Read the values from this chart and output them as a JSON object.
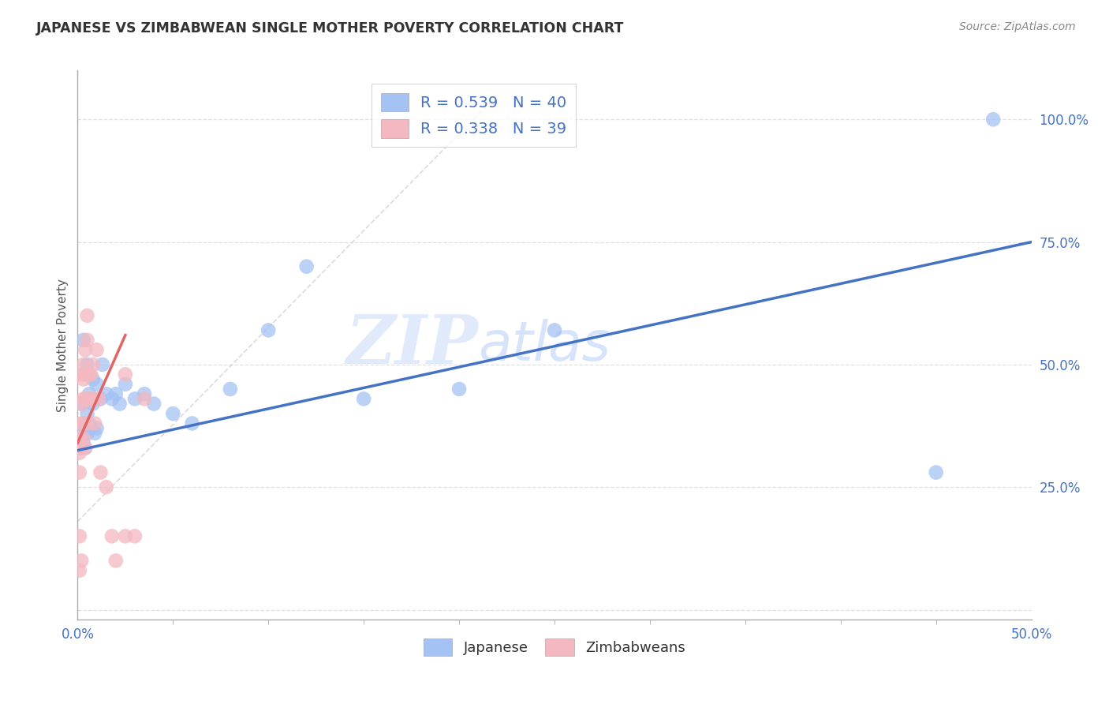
{
  "title": "JAPANESE VS ZIMBABWEAN SINGLE MOTHER POVERTY CORRELATION CHART",
  "source": "Source: ZipAtlas.com",
  "ylabel": "Single Mother Poverty",
  "xlim": [
    0.0,
    0.5
  ],
  "ylim": [
    -0.02,
    1.1
  ],
  "background_color": "#ffffff",
  "grid_color": "#e0e0e0",
  "watermark_zip": "ZIP",
  "watermark_atlas": "atlas",
  "legend_R1": "R = 0.539",
  "legend_N1": "N = 40",
  "legend_R2": "R = 0.338",
  "legend_N2": "N = 39",
  "blue_color": "#a4c2f4",
  "pink_color": "#f4b8c1",
  "line_blue": "#4472c4",
  "line_pink": "#e06666",
  "diag_color": "#cccccc",
  "japanese_x": [
    0.001,
    0.002,
    0.002,
    0.003,
    0.003,
    0.003,
    0.004,
    0.004,
    0.005,
    0.005,
    0.005,
    0.006,
    0.006,
    0.007,
    0.007,
    0.008,
    0.008,
    0.009,
    0.01,
    0.01,
    0.012,
    0.013,
    0.015,
    0.018,
    0.02,
    0.022,
    0.025,
    0.03,
    0.035,
    0.04,
    0.05,
    0.06,
    0.08,
    0.1,
    0.12,
    0.15,
    0.2,
    0.25,
    0.45,
    0.48
  ],
  "japanese_y": [
    0.33,
    0.36,
    0.42,
    0.34,
    0.38,
    0.55,
    0.37,
    0.33,
    0.4,
    0.36,
    0.5,
    0.44,
    0.38,
    0.43,
    0.37,
    0.47,
    0.42,
    0.36,
    0.37,
    0.46,
    0.43,
    0.5,
    0.44,
    0.43,
    0.44,
    0.42,
    0.46,
    0.43,
    0.44,
    0.42,
    0.4,
    0.38,
    0.45,
    0.57,
    0.7,
    0.43,
    0.45,
    0.57,
    0.28,
    1.0
  ],
  "zimbabwe_x": [
    0.001,
    0.001,
    0.001,
    0.001,
    0.001,
    0.002,
    0.002,
    0.002,
    0.002,
    0.002,
    0.003,
    0.003,
    0.003,
    0.003,
    0.003,
    0.004,
    0.004,
    0.004,
    0.004,
    0.005,
    0.005,
    0.005,
    0.006,
    0.006,
    0.007,
    0.007,
    0.008,
    0.008,
    0.009,
    0.01,
    0.011,
    0.012,
    0.015,
    0.018,
    0.02,
    0.025,
    0.025,
    0.03,
    0.035
  ],
  "zimbabwe_y": [
    0.35,
    0.32,
    0.28,
    0.15,
    0.08,
    0.48,
    0.42,
    0.38,
    0.33,
    0.1,
    0.5,
    0.47,
    0.43,
    0.38,
    0.35,
    0.53,
    0.48,
    0.43,
    0.33,
    0.6,
    0.55,
    0.38,
    0.48,
    0.43,
    0.48,
    0.43,
    0.5,
    0.43,
    0.38,
    0.53,
    0.43,
    0.28,
    0.25,
    0.15,
    0.1,
    0.48,
    0.15,
    0.15,
    0.43
  ],
  "blue_line_x": [
    0.0,
    0.5
  ],
  "blue_line_y": [
    0.325,
    0.75
  ],
  "pink_line_x": [
    0.0,
    0.025
  ],
  "pink_line_y": [
    0.34,
    0.56
  ]
}
